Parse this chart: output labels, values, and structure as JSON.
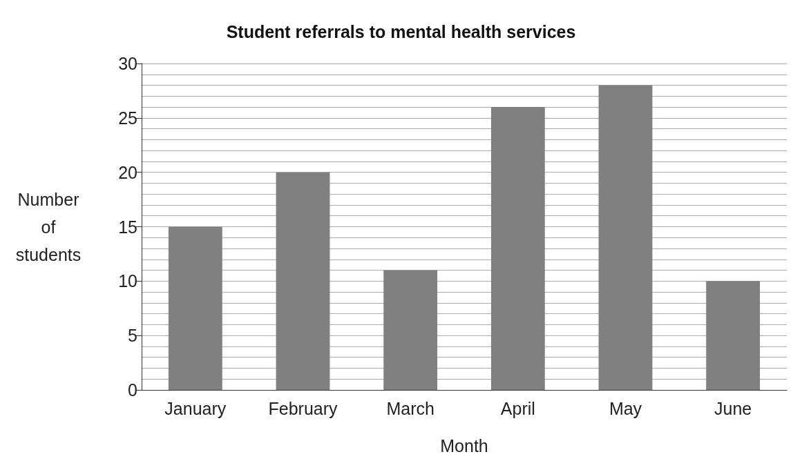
{
  "chart_data": {
    "type": "bar",
    "title": "Student referrals to mental health services",
    "xlabel": "Month",
    "ylabel": "Number of students",
    "categories": [
      "January",
      "February",
      "March",
      "April",
      "May",
      "June"
    ],
    "values": [
      15,
      20,
      11,
      26,
      28,
      10
    ],
    "color": "#808080",
    "ylim": [
      0,
      30
    ],
    "yticks": [
      0,
      {
        "value": 1,
        "label": null
      },
      {
        "value": 2,
        "label": null
      },
      {
        "value": 3,
        "label": null
      },
      {
        "value": 4,
        "label": null
      },
      5,
      {
        "value": 6,
        "label": null
      },
      {
        "value": 7,
        "label": null
      },
      {
        "value": 8,
        "label": null
      },
      {
        "value": 9,
        "label": null
      },
      10,
      {
        "value": 11,
        "label": null
      },
      {
        "value": 12,
        "label": null
      },
      {
        "value": 13,
        "label": null
      },
      {
        "value": 14,
        "label": null
      },
      15,
      {
        "value": 16,
        "label": null
      },
      {
        "value": 17,
        "label": null
      },
      {
        "value": 18,
        "label": null
      },
      {
        "value": 19,
        "label": null
      },
      20,
      {
        "value": 21,
        "label": null
      },
      {
        "value": 22,
        "label": null
      },
      {
        "value": 23,
        "label": null
      },
      {
        "value": 24,
        "label": null
      },
      25,
      {
        "value": 26,
        "label": null
      },
      {
        "value": 27,
        "label": null
      },
      {
        "value": 28,
        "label": null
      },
      {
        "value": 29,
        "label": null
      },
      30
    ],
    "grid": "y"
  }
}
